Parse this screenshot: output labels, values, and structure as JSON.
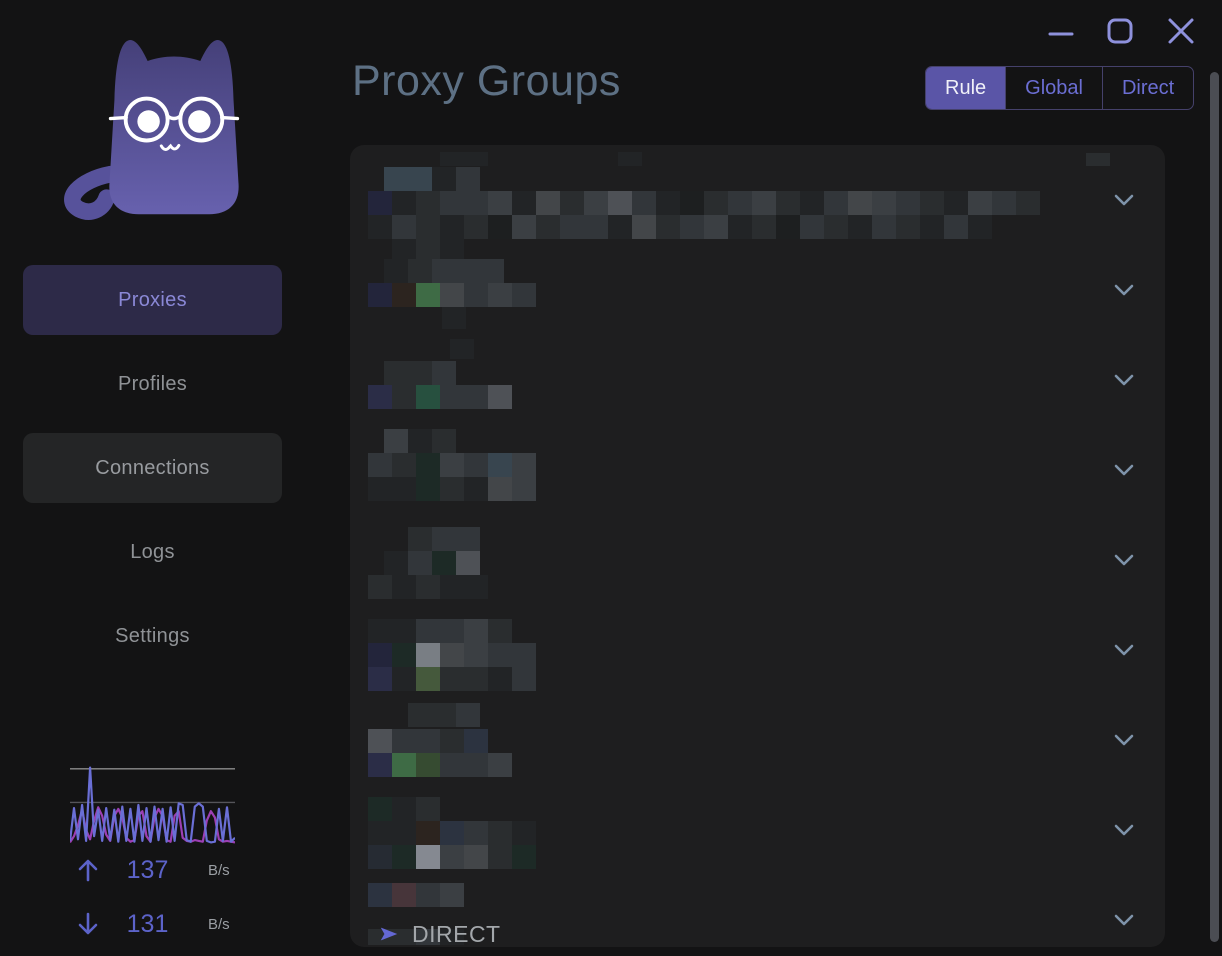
{
  "window": {
    "background": "#131314",
    "titlebar": {
      "icon_color": "#8e91dc"
    }
  },
  "sidebar": {
    "logo": "clash-cat-logo",
    "logo_colors": {
      "body_top": "#454079",
      "body_bottom": "#6761ae",
      "face": "#ffffff"
    },
    "items": [
      {
        "label": "Proxies",
        "state": "active"
      },
      {
        "label": "Profiles",
        "state": "normal"
      },
      {
        "label": "Connections",
        "state": "hover"
      },
      {
        "label": "Logs",
        "state": "normal"
      },
      {
        "label": "Settings",
        "state": "normal"
      }
    ],
    "traffic": {
      "up": {
        "value": "137",
        "unit": "B/s"
      },
      "down": {
        "value": "131",
        "unit": "B/s"
      },
      "chart": {
        "type": "line",
        "ylim": [
          0,
          100
        ],
        "gridlines": [
          94,
          52
        ],
        "gridline_colors": [
          "#8d8d8d",
          "#55555a"
        ],
        "series": [
          {
            "name": "download",
            "color": "#9c3fb4",
            "values": [
              2,
              10,
              24,
              44,
              18,
              6,
              30,
              47,
              36,
              12,
              4,
              36,
              45,
              34,
              8,
              3,
              5,
              36,
              42,
              10,
              3,
              34,
              45,
              36,
              5,
              3,
              36,
              42,
              8,
              4,
              3,
              5,
              4,
              3,
              30,
              42,
              34,
              6,
              3,
              4,
              3,
              2
            ]
          },
          {
            "name": "upload",
            "color": "#6a6fd6",
            "values": [
              4,
              46,
              6,
              50,
              4,
              98,
              10,
              44,
              4,
              46,
              5,
              44,
              3,
              48,
              4,
              45,
              3,
              50,
              4,
              46,
              3,
              48,
              5,
              45,
              3,
              47,
              4,
              52,
              50,
              5,
              3,
              48,
              52,
              48,
              4,
              2,
              3,
              45,
              4,
              47,
              3,
              8
            ]
          }
        ]
      }
    }
  },
  "main": {
    "title": "Proxy Groups",
    "mode_switch": {
      "options": [
        "Rule",
        "Global",
        "Direct"
      ],
      "selected": "Rule",
      "selected_bg": "#5a55a7",
      "text_color": "#6b6ed3"
    },
    "groups_panel": {
      "background": "#1e1e1f",
      "chevron_color": "#7e93a9",
      "redacted": true,
      "mosaic_cell": 24,
      "mosaic_palette": {
        "a": "#1d1f20",
        "b": "#222426",
        "c": "#2a2d2f",
        "d": "#32363a",
        "e": "#3b3f43",
        "f": "#434649",
        "g": "#4e5156",
        "h": "#797e84",
        "L": "#858991",
        "x": "#191a1c",
        "p": "#23253b",
        "N": "#2b2d47",
        "n": "#262b33",
        "S": "#2c3340",
        "s": "#38454f",
        "t": "#1d2a26",
        "T": "#27503f",
        "G": "#3e6b45",
        "o": "#45593c",
        "O": "#364b31",
        "w": "#2c241f",
        "r": "#47353a"
      },
      "rows": [
        {
          "strips": [
            {
              "x": 90,
              "y": 7,
              "h": 14,
              "cells": "bb"
            },
            {
              "x": 268,
              "y": 7,
              "h": 14,
              "cells": "b"
            },
            {
              "x": 736,
              "y": 8,
              "h": 13,
              "cells": "c"
            },
            {
              "x": 34,
              "y": 22,
              "h": 24,
              "cells": "ssbd"
            },
            {
              "x": 18,
              "y": 46,
              "h": 24,
              "cells": "pbcddebfcegdbacdecbdfedcbedc"
            },
            {
              "x": 18,
              "y": 70,
              "h": 24,
              "cells": "bdcbcaecddbfcdebcadcbdcbdb"
            },
            {
              "x": 42,
              "y": 94,
              "h": 22,
              "cells": "bcb"
            }
          ]
        },
        {
          "strips": [
            {
              "x": 34,
              "y": 24,
              "h": 24,
              "cells": "bcddd"
            },
            {
              "x": 18,
              "y": 48,
              "h": 24,
              "cells": "pwGfded"
            },
            {
              "x": 92,
              "y": 72,
              "h": 22,
              "cells": "b"
            }
          ]
        },
        {
          "strips": [
            {
              "x": 100,
              "y": 14,
              "h": 20,
              "cells": "b"
            },
            {
              "x": 34,
              "y": 36,
              "h": 24,
              "cells": "ccd"
            },
            {
              "x": 18,
              "y": 60,
              "h": 24,
              "cells": "NcTddg"
            }
          ]
        },
        {
          "strips": [
            {
              "x": 34,
              "y": 14,
              "h": 24,
              "cells": "ebc"
            },
            {
              "x": 18,
              "y": 38,
              "h": 24,
              "cells": "dctedse"
            },
            {
              "x": 18,
              "y": 62,
              "h": 24,
              "cells": "bbtcbfe"
            }
          ]
        },
        {
          "strips": [
            {
              "x": 58,
              "y": 22,
              "h": 24,
              "cells": "cdd"
            },
            {
              "x": 34,
              "y": 46,
              "h": 24,
              "cells": "bdtg"
            },
            {
              "x": 18,
              "y": 70,
              "h": 24,
              "cells": "cbcbb"
            }
          ]
        },
        {
          "strips": [
            {
              "x": 18,
              "y": 24,
              "h": 24,
              "cells": "bbddec"
            },
            {
              "x": 18,
              "y": 48,
              "h": 24,
              "cells": "pthfedd"
            },
            {
              "x": 18,
              "y": 72,
              "h": 24,
              "cells": "Nboccbd"
            }
          ]
        },
        {
          "strips": [
            {
              "x": 58,
              "y": 18,
              "h": 24,
              "cells": "ccd"
            },
            {
              "x": 18,
              "y": 44,
              "h": 24,
              "cells": "gddcS"
            },
            {
              "x": 18,
              "y": 68,
              "h": 24,
              "cells": "NGOdde"
            }
          ]
        },
        {
          "strips": [
            {
              "x": 18,
              "y": 22,
              "h": 24,
              "cells": "tbc"
            },
            {
              "x": 18,
              "y": 46,
              "h": 24,
              "cells": "bbwSdcb"
            },
            {
              "x": 18,
              "y": 70,
              "h": 24,
              "cells": "ntLefct"
            }
          ]
        },
        {
          "strips": [
            {
              "x": 18,
              "y": 18,
              "h": 24,
              "cells": "Srde"
            },
            {
              "x": 18,
              "y": 64,
              "h": 16,
              "cells": "ccdb"
            }
          ]
        }
      ],
      "direct_item": {
        "label": "DIRECT",
        "icon": "send-arrow",
        "icon_color": "#6468d4"
      }
    }
  },
  "scrollbar": {
    "color": "#4b4d53"
  }
}
